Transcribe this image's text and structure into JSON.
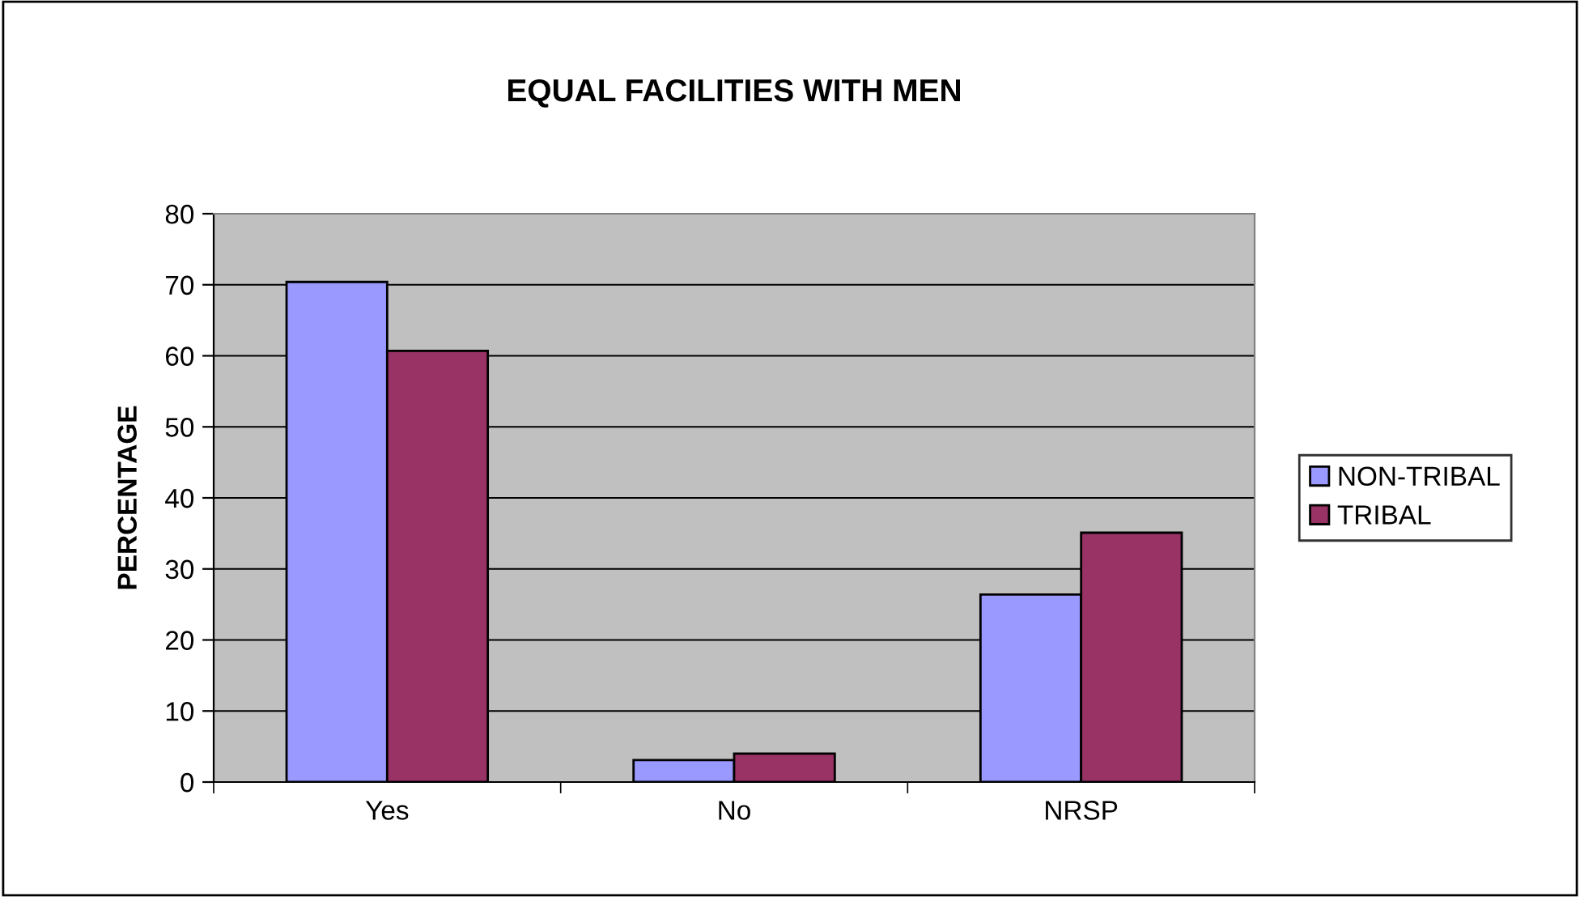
{
  "chart_data": {
    "type": "bar",
    "title": "EQUAL FACILITIES WITH MEN",
    "ylabel": "PERCENTAGE",
    "categories": [
      "Yes",
      "No",
      "NRSP"
    ],
    "series": [
      {
        "name": "NON-TRIBAL",
        "color": "#9999ff",
        "values": [
          70.4,
          3.1,
          26.4
        ]
      },
      {
        "name": "TRIBAL",
        "color": "#993366",
        "values": [
          60.7,
          4.0,
          35.1
        ]
      }
    ],
    "ylim": [
      0,
      80
    ],
    "yticks": [
      0,
      10,
      20,
      30,
      40,
      50,
      60,
      70,
      80
    ],
    "grid": "y",
    "legend": "right"
  }
}
